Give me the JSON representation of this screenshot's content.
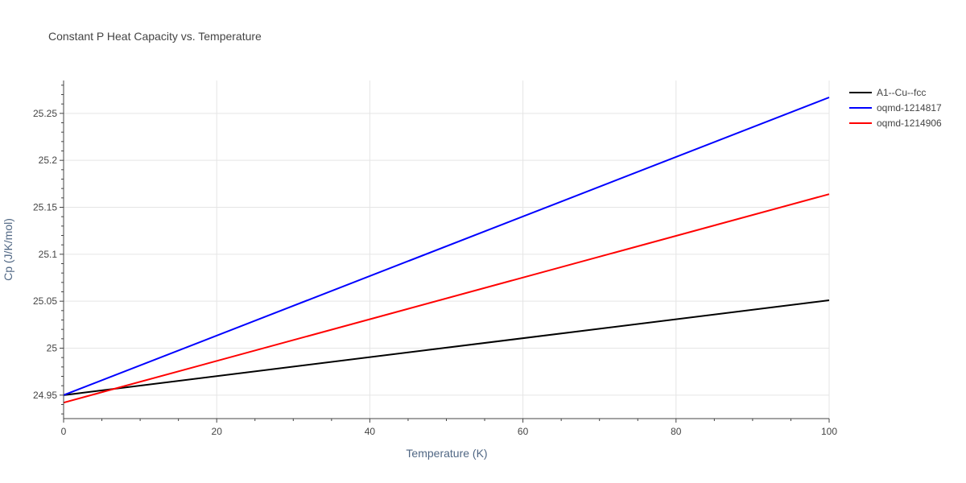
{
  "chart_data": {
    "type": "line",
    "title": "Constant P Heat Capacity vs. Temperature",
    "xlabel": "Temperature (K)",
    "ylabel": "Cp (J/K/mol)",
    "xlim": [
      0,
      100
    ],
    "ylim": [
      24.925,
      25.285
    ],
    "x_ticks": [
      0,
      20,
      40,
      60,
      80,
      100
    ],
    "y_ticks": [
      24.95,
      25,
      25.05,
      25.1,
      25.15,
      25.2,
      25.25
    ],
    "x_tick_labels": [
      "0",
      "20",
      "40",
      "60",
      "80",
      "100"
    ],
    "y_tick_labels": [
      "24.95",
      "25",
      "25.05",
      "25.1",
      "25.15",
      "25.2",
      "25.25"
    ],
    "grid": true,
    "legend_position": "top-right",
    "series": [
      {
        "name": "A1--Cu--fcc",
        "color": "#000000",
        "x": [
          0,
          100
        ],
        "y": [
          24.95,
          25.051
        ]
      },
      {
        "name": "oqmd-1214817",
        "color": "#0000ff",
        "x": [
          0,
          100
        ],
        "y": [
          24.95,
          25.267
        ]
      },
      {
        "name": "oqmd-1214906",
        "color": "#ff0000",
        "x": [
          0,
          100
        ],
        "y": [
          24.942,
          25.164
        ]
      }
    ]
  }
}
